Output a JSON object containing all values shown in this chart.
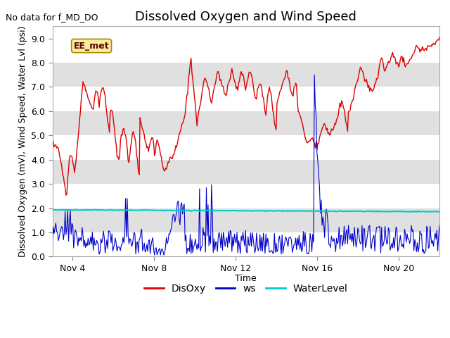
{
  "title": "Dissolved Oxygen and Wind Speed",
  "ylabel": "Dissolved Oxygen (mV), Wind Speed, Water Lvl (psi)",
  "xlabel": "Time",
  "note": "No data for f_MD_DO",
  "station_label": "EE_met",
  "ylim": [
    0.0,
    9.5
  ],
  "yticks": [
    0.0,
    1.0,
    2.0,
    3.0,
    4.0,
    5.0,
    6.0,
    7.0,
    8.0,
    9.0
  ],
  "xlim": [
    3.0,
    22.0
  ],
  "xtick_positions": [
    4,
    8,
    12,
    16,
    20
  ],
  "xtick_labels": [
    "Nov 4",
    "Nov 8",
    "Nov 12",
    "Nov 16",
    "Nov 20"
  ],
  "bg_color": "#ffffff",
  "band_light": "#ffffff",
  "band_dark": "#e0e0e0",
  "disoxy_color": "#dd0000",
  "ws_color": "#0000cc",
  "waterlevel_color": "#00cccc",
  "legend_labels": [
    "DisOxy",
    "ws",
    "WaterLevel"
  ],
  "legend_colors": [
    "#dd0000",
    "#0000cc",
    "#00cccc"
  ],
  "note_fontsize": 9,
  "title_fontsize": 13,
  "label_fontsize": 9,
  "tick_fontsize": 9,
  "legend_fontsize": 10
}
